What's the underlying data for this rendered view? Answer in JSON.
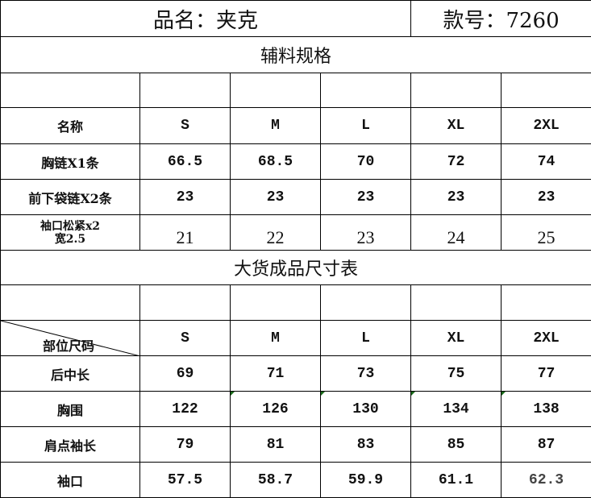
{
  "header": {
    "product_name": "品名：夹克",
    "style_no": "款号：7260"
  },
  "accessories": {
    "section_title": "辅料规格",
    "columns": [
      "名称",
      "S",
      "M",
      "L",
      "XL",
      "2XL"
    ],
    "rows": [
      {
        "name": "胸链X1条",
        "values": [
          "66.5",
          "68.5",
          "70",
          "72",
          "74"
        ]
      },
      {
        "name": "前下袋链X2条",
        "values": [
          "23",
          "23",
          "23",
          "23",
          "23"
        ]
      },
      {
        "name_line1": "袖口松紧x2",
        "name_line2": "宽2.5",
        "values": [
          "21",
          "22",
          "23",
          "24",
          "25"
        ]
      }
    ]
  },
  "measurements": {
    "section_title": "大货成品尺寸表",
    "corner_label": "部位尺码",
    "sizes": [
      "S",
      "M",
      "L",
      "XL",
      "2XL"
    ],
    "rows": [
      {
        "name": "后中长",
        "values": [
          "69",
          "71",
          "73",
          "75",
          "77"
        ]
      },
      {
        "name": "胸围",
        "values": [
          "122",
          "126",
          "130",
          "134",
          "138"
        ]
      },
      {
        "name": "肩点袖长",
        "values": [
          "79",
          "81",
          "83",
          "85",
          "87"
        ]
      },
      {
        "name": "袖口",
        "values": [
          "57.5",
          "58.7",
          "59.9",
          "61.1",
          "62.3"
        ]
      }
    ]
  },
  "colors": {
    "cell_comment_marker": "#1a6b1a",
    "grid": "#000000"
  }
}
